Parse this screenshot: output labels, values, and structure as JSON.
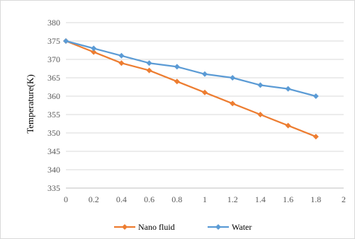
{
  "chart_data": {
    "type": "line",
    "title": "",
    "xlabel": "",
    "ylabel": "Temperature(K)",
    "xlim": [
      0,
      2
    ],
    "ylim": [
      335,
      380
    ],
    "x_ticks": [
      "0",
      "0.2",
      "0.4",
      "0.6",
      "0.8",
      "1",
      "1.2",
      "1.4",
      "1.6",
      "1.8",
      "2"
    ],
    "y_ticks": [
      "335",
      "340",
      "345",
      "350",
      "355",
      "360",
      "365",
      "370",
      "375",
      "380"
    ],
    "x": [
      0,
      0.2,
      0.4,
      0.6,
      0.8,
      1.0,
      1.2,
      1.4,
      1.6,
      1.8
    ],
    "series": [
      {
        "name": "Nano fluid",
        "color": "#ED7D31",
        "marker": "diamond",
        "values": [
          375,
          372,
          369,
          367,
          364,
          361,
          358,
          355,
          352,
          349
        ]
      },
      {
        "name": "Water",
        "color": "#5B9BD5",
        "marker": "diamond",
        "values": [
          375,
          373,
          371,
          369,
          368,
          366,
          365,
          363,
          362,
          360
        ]
      }
    ],
    "grid": {
      "horizontal": true,
      "vertical": false
    },
    "legend_position": "bottom"
  }
}
